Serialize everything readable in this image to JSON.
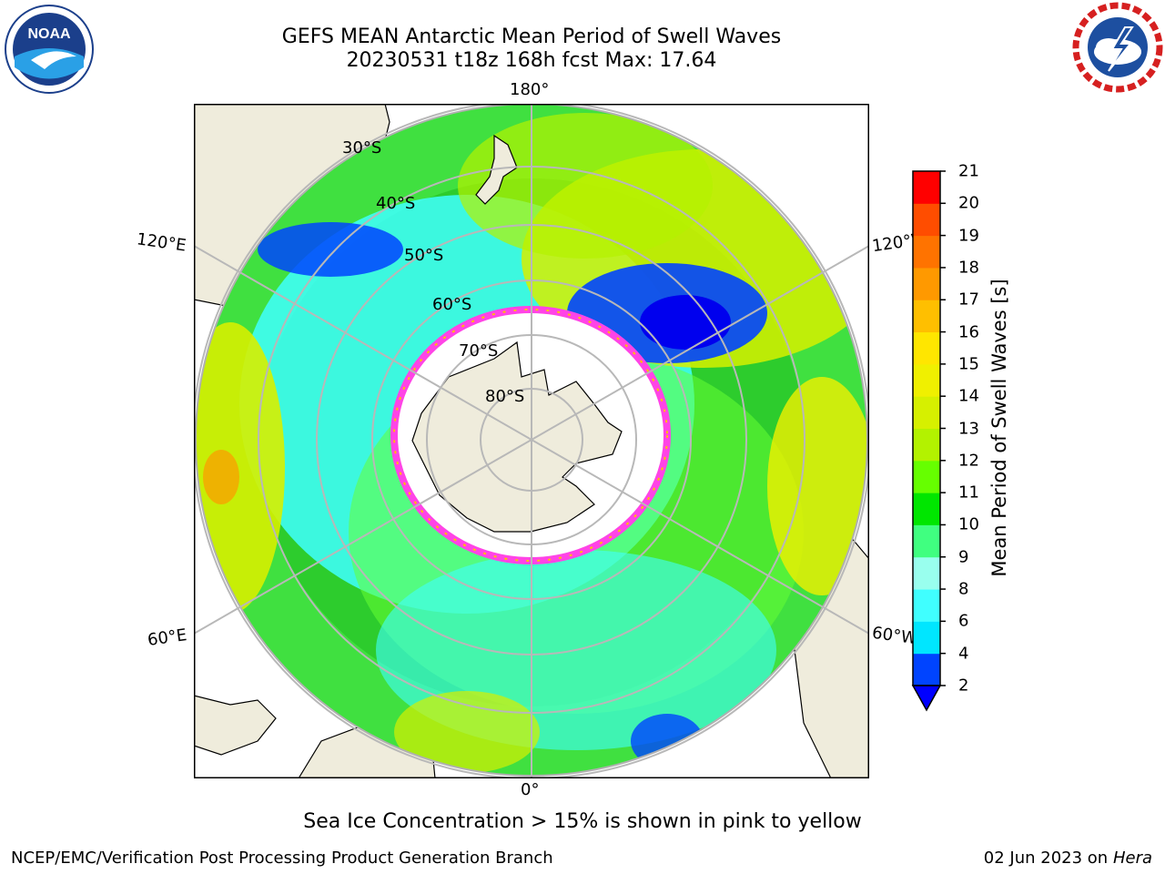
{
  "title": {
    "line1": "GEFS MEAN Antarctic Mean Period of Swell Waves",
    "line2": "20230531 t18z 168h fcst   Max: 17.64"
  },
  "map": {
    "projection": "south-polar-stereographic",
    "longitude_labels": {
      "top": "180°",
      "bottom": "0°",
      "left_upper": "120°E",
      "right_upper": "120°W",
      "left_lower": "60°E",
      "right_lower": "60°W"
    },
    "latitude_labels": [
      "30°S",
      "40°S",
      "50°S",
      "60°S",
      "70°S",
      "80°S"
    ],
    "colors": {
      "land": "#efecdc",
      "ocean_default": "#2dcc2d",
      "gridlines": "#b8b8b8",
      "sea_ice": "#ff44e6"
    }
  },
  "colorbar": {
    "label": "Mean Period of Swell Waves [s]",
    "ticks": [
      "2",
      "4",
      "6",
      "8",
      "9",
      "10",
      "11",
      "12",
      "13",
      "14",
      "15",
      "16",
      "17",
      "18",
      "19",
      "20",
      "21"
    ],
    "colors": [
      "#0044ff",
      "#00e6ff",
      "#40ffff",
      "#99ffee",
      "#40ff80",
      "#00e600",
      "#66ff00",
      "#b3f200",
      "#d6f000",
      "#f0f000",
      "#ffe600",
      "#ffbf00",
      "#ff9900",
      "#ff7300",
      "#ff4d00",
      "#ff0000"
    ],
    "underflow_color": "#0000ff"
  },
  "logos": {
    "left": {
      "name": "noaa-logo",
      "text": "NOAA"
    },
    "right": {
      "name": "nws-logo",
      "text": "NATIONAL WEATHER SERVICE"
    }
  },
  "subtitle": "Sea Ice Concentration > 15% is shown in pink to yellow",
  "footer": {
    "left": "NCEP/EMC/Verification Post Processing Product Generation Branch",
    "right_date": "02 Jun 2023 on",
    "right_host": "Hera"
  }
}
